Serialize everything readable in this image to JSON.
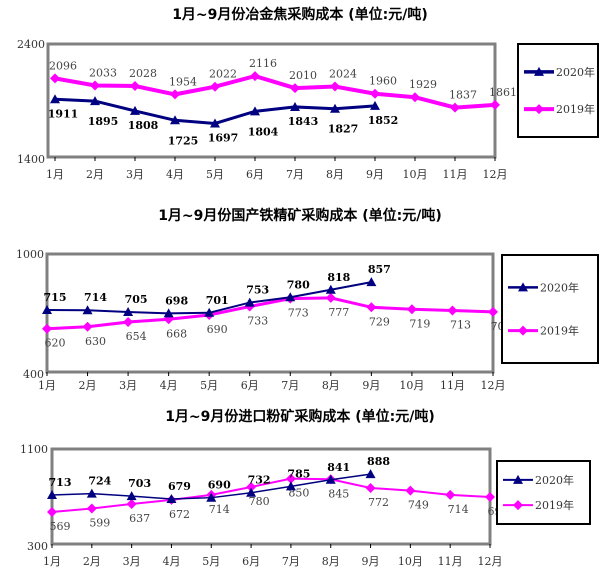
{
  "colors": {
    "s2020": "#000080",
    "s2019": "#ff00ff",
    "frame": "#808080"
  },
  "chart_data": [
    {
      "type": "line",
      "title": "1月~9月份冶金焦采购成本 (单位:元/吨)",
      "categories": [
        "1月",
        "2月",
        "3月",
        "4月",
        "5月",
        "6月",
        "7月",
        "8月",
        "9月",
        "10月",
        "11月",
        "12月"
      ],
      "ylim": [
        1400,
        2400
      ],
      "yticks": [
        "1400",
        "2400"
      ],
      "legend": "right",
      "series": [
        {
          "name": "2020年",
          "marker": "triangle",
          "values": [
            1911,
            1895,
            1808,
            1725,
            1697,
            1804,
            1843,
            1827,
            1852,
            null,
            null,
            null
          ]
        },
        {
          "name": "2019年",
          "marker": "diamond",
          "values": [
            2096,
            2033,
            2028,
            1954,
            2022,
            2116,
            2010,
            2024,
            1960,
            1929,
            1837,
            1861
          ]
        }
      ]
    },
    {
      "type": "line",
      "title": "1月~9月份国产铁精矿采购成本 (单位:元/吨)",
      "categories": [
        "1月",
        "2月",
        "3月",
        "4月",
        "5月",
        "6月",
        "7月",
        "8月",
        "9月",
        "10月",
        "11月",
        "12月"
      ],
      "ylim": [
        400,
        1000
      ],
      "yticks": [
        "400",
        "1000"
      ],
      "legend": "right",
      "series": [
        {
          "name": "2020年",
          "marker": "triangle",
          "values": [
            715,
            714,
            705,
            698,
            701,
            753,
            780,
            818,
            857,
            null,
            null,
            null
          ]
        },
        {
          "name": "2019年",
          "marker": "diamond",
          "values": [
            620,
            630,
            654,
            668,
            690,
            733,
            773,
            777,
            729,
            719,
            713,
            706
          ]
        }
      ]
    },
    {
      "type": "line",
      "title": "1月~9月份进口粉矿采购成本 (单位:元/吨)",
      "categories": [
        "1月",
        "2月",
        "3月",
        "4月",
        "5月",
        "6月",
        "7月",
        "8月",
        "9月",
        "10月",
        "11月",
        "12月"
      ],
      "ylim": [
        300,
        1100
      ],
      "yticks": [
        "300",
        "1100"
      ],
      "legend": "right",
      "series": [
        {
          "name": "2020年",
          "marker": "triangle",
          "values": [
            713,
            724,
            703,
            679,
            690,
            732,
            785,
            841,
            888,
            null,
            null,
            null
          ]
        },
        {
          "name": "2019年",
          "marker": "diamond",
          "values": [
            569,
            599,
            637,
            672,
            714,
            780,
            850,
            845,
            772,
            749,
            714,
            696
          ]
        }
      ]
    }
  ]
}
